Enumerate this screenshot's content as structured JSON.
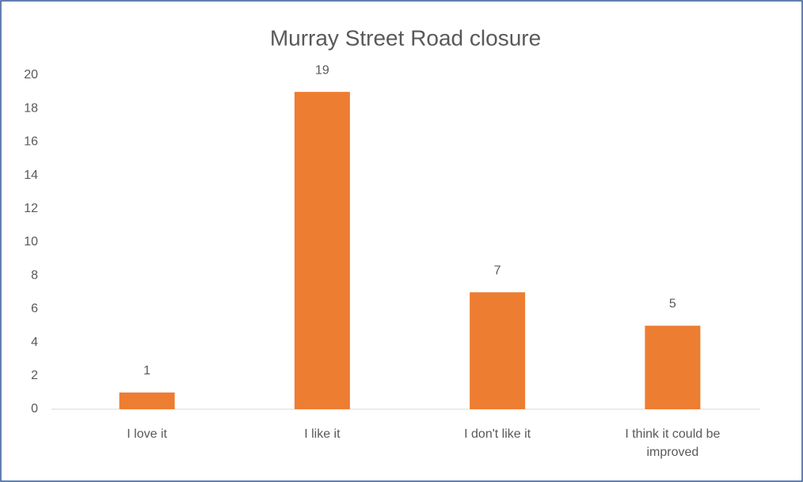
{
  "chart_data": {
    "type": "bar",
    "title": "Murray Street Road closure",
    "categories": [
      "I love it",
      "I like it",
      "I don't like it",
      "I think it could be improved"
    ],
    "values": [
      1,
      19,
      7,
      5
    ],
    "color": "#ed7d31",
    "ylim": [
      0,
      20
    ],
    "yticks": [
      0,
      2,
      4,
      6,
      8,
      10,
      12,
      14,
      16,
      18,
      20
    ],
    "grid": false
  }
}
